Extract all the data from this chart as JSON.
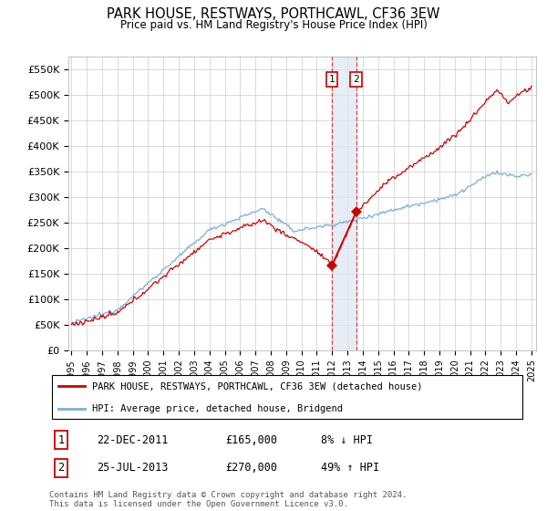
{
  "title": "PARK HOUSE, RESTWAYS, PORTHCAWL, CF36 3EW",
  "subtitle": "Price paid vs. HM Land Registry's House Price Index (HPI)",
  "ylabel_ticks": [
    "£0",
    "£50K",
    "£100K",
    "£150K",
    "£200K",
    "£250K",
    "£300K",
    "£350K",
    "£400K",
    "£450K",
    "£500K",
    "£550K"
  ],
  "ytick_values": [
    0,
    50000,
    100000,
    150000,
    200000,
    250000,
    300000,
    350000,
    400000,
    450000,
    500000,
    550000
  ],
  "xlim_start": 1994.8,
  "xlim_end": 2025.3,
  "ylim_bottom": 0,
  "ylim_top": 575000,
  "hpi_color": "#7bafd4",
  "price_color": "#cc0000",
  "sale1_date": 2011.97,
  "sale1_price": 165000,
  "sale1_label": "1",
  "sale1_hpi_pct": "8% ↓ HPI",
  "sale1_date_str": "22-DEC-2011",
  "sale2_date": 2013.56,
  "sale2_price": 270000,
  "sale2_label": "2",
  "sale2_hpi_pct": "49% ↑ HPI",
  "sale2_date_str": "25-JUL-2013",
  "legend_line1": "PARK HOUSE, RESTWAYS, PORTHCAWL, CF36 3EW (detached house)",
  "legend_line2": "HPI: Average price, detached house, Bridgend",
  "footnote": "Contains HM Land Registry data © Crown copyright and database right 2024.\nThis data is licensed under the Open Government Licence v3.0.",
  "background_color": "#ffffff",
  "grid_color": "#cccccc"
}
